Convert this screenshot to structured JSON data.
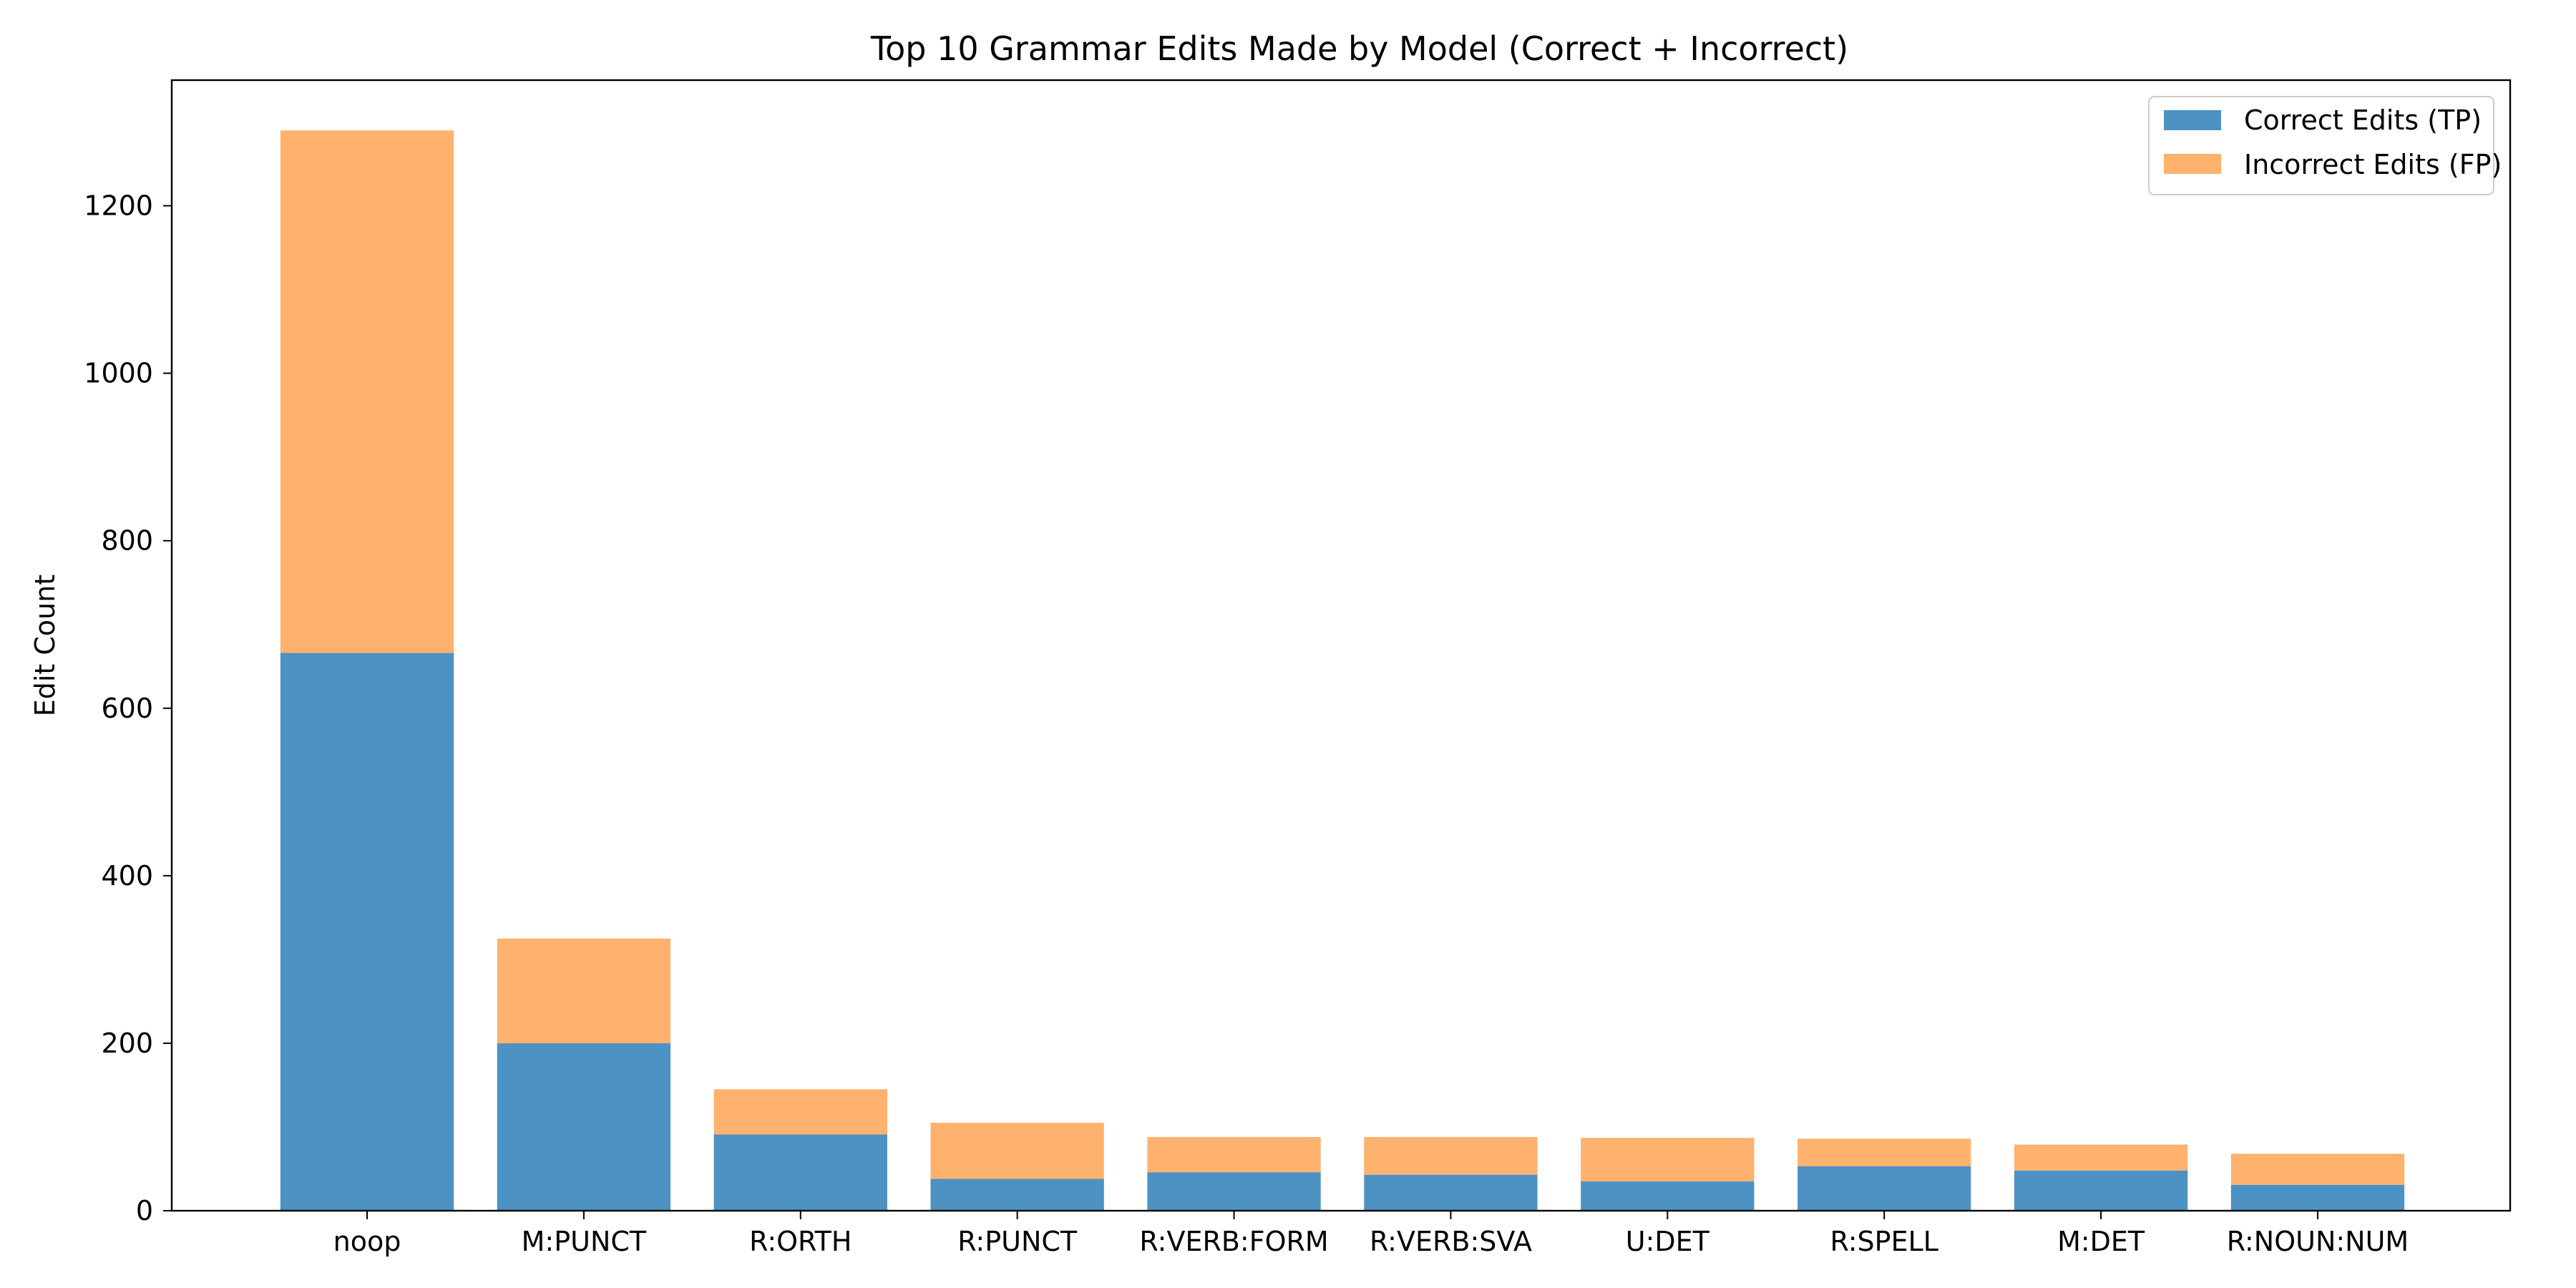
{
  "chart_data": {
    "type": "bar",
    "stacked": true,
    "title": "Top 10 Grammar Edits Made by Model (Correct + Incorrect)",
    "xlabel": "",
    "ylabel": "Edit Count",
    "ylim": [
      0,
      1350
    ],
    "yticks": [
      0,
      200,
      400,
      600,
      800,
      1000,
      1200
    ],
    "legend_position": "top-right",
    "grid": false,
    "categories": [
      "noop",
      "M:PUNCT",
      "R:ORTH",
      "R:PUNCT",
      "R:VERB:FORM",
      "R:VERB:SVA",
      "U:DET",
      "R:SPELL",
      "M:DET",
      "R:NOUN:NUM"
    ],
    "series": [
      {
        "name": "Correct Edits (TP)",
        "color": "#4c92c3",
        "values": [
          666,
          200,
          91,
          38,
          46,
          43,
          35,
          53,
          48,
          31
        ]
      },
      {
        "name": "Incorrect Edits (FP)",
        "color": "#ffb26e",
        "values": [
          624,
          125,
          54,
          67,
          42,
          45,
          52,
          33,
          31,
          37
        ]
      }
    ]
  }
}
